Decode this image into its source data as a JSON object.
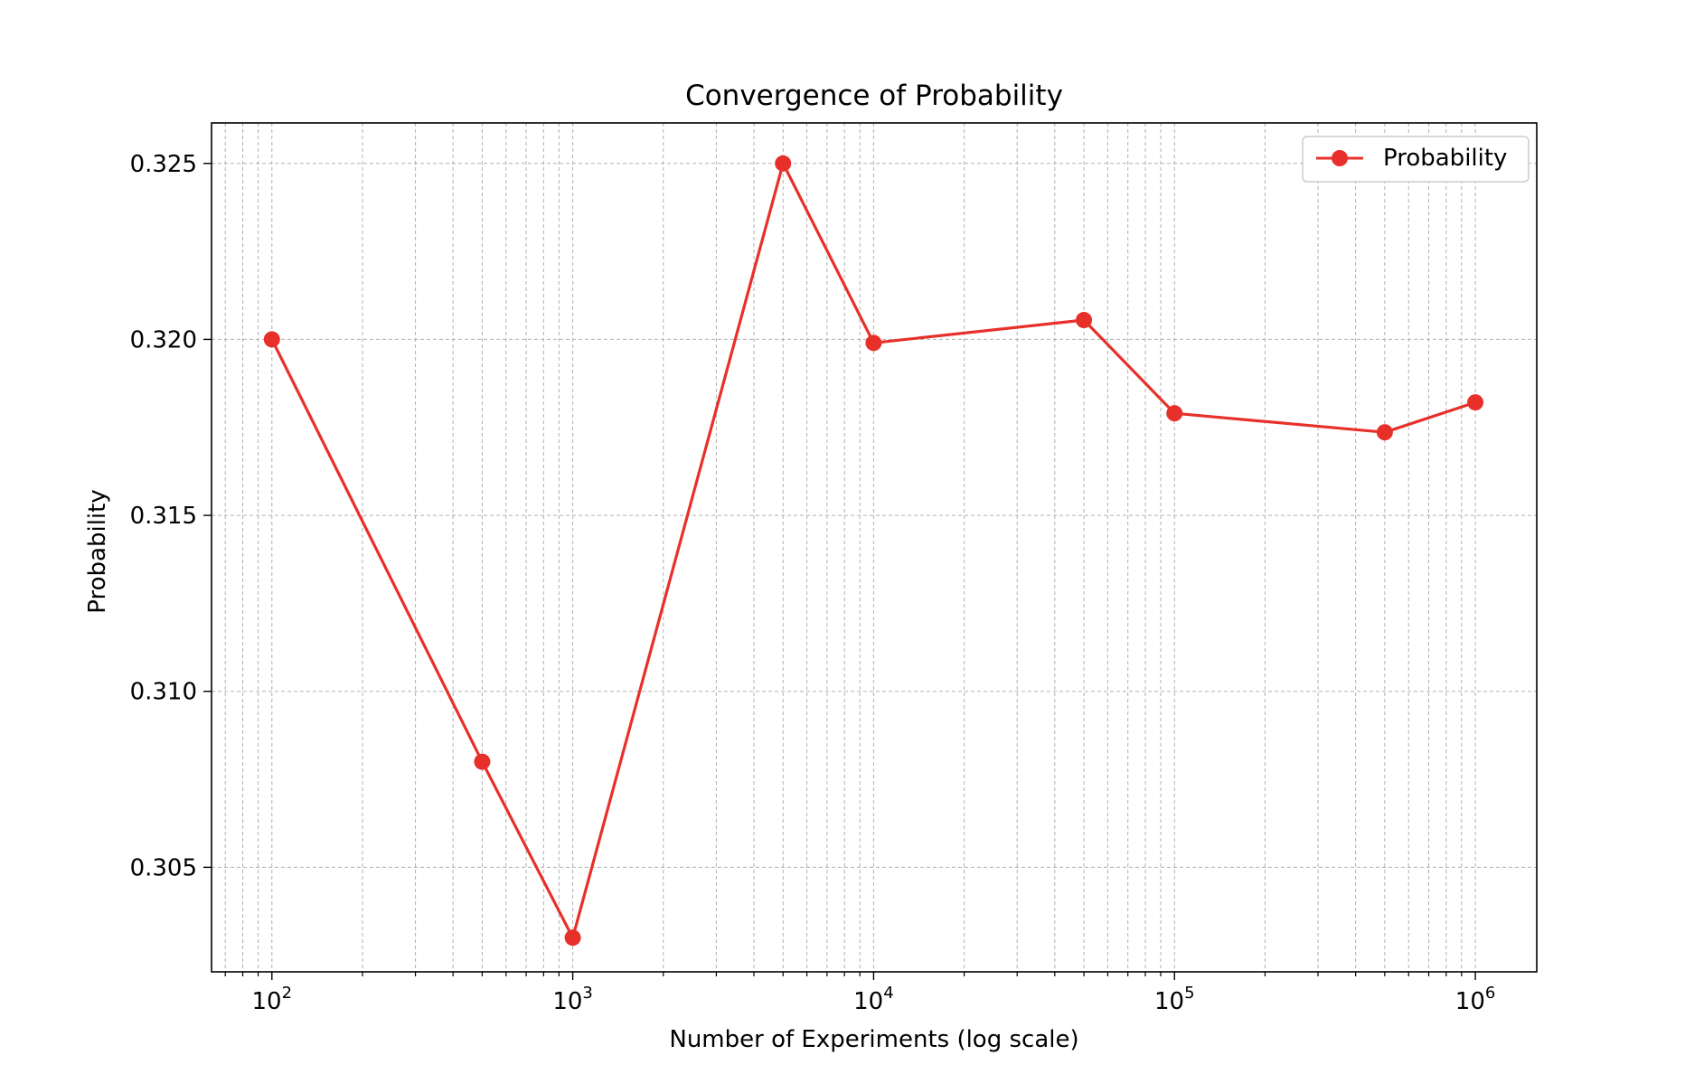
{
  "chart_data": {
    "type": "line",
    "title": "Convergence of Probability",
    "xlabel": "Number of Experiments (log scale)",
    "ylabel": "Probability",
    "xscale": "log",
    "xlim": [
      63,
      1600000
    ],
    "ylim": [
      0.30203,
      0.32615
    ],
    "x_ticks": [
      {
        "value": 100,
        "base": "10",
        "exp": "2"
      },
      {
        "value": 1000,
        "base": "10",
        "exp": "3"
      },
      {
        "value": 10000,
        "base": "10",
        "exp": "4"
      },
      {
        "value": 100000,
        "base": "10",
        "exp": "5"
      },
      {
        "value": 1000000,
        "base": "10",
        "exp": "6"
      }
    ],
    "y_ticks": [
      {
        "value": 0.305,
        "label": "0.305"
      },
      {
        "value": 0.31,
        "label": "0.310"
      },
      {
        "value": 0.315,
        "label": "0.315"
      },
      {
        "value": 0.32,
        "label": "0.320"
      },
      {
        "value": 0.325,
        "label": "0.325"
      }
    ],
    "grid": true,
    "grid_minor_x": true,
    "legend_position": "top-right",
    "series": [
      {
        "name": "Probability",
        "color": "#e8302a",
        "marker": "circle",
        "x": [
          100,
          500,
          1000,
          5000,
          10000,
          50000,
          100000,
          500000,
          1000000
        ],
        "y": [
          0.32,
          0.308,
          0.303,
          0.325,
          0.3199,
          0.32055,
          0.3179,
          0.31736,
          0.31821
        ]
      }
    ]
  }
}
